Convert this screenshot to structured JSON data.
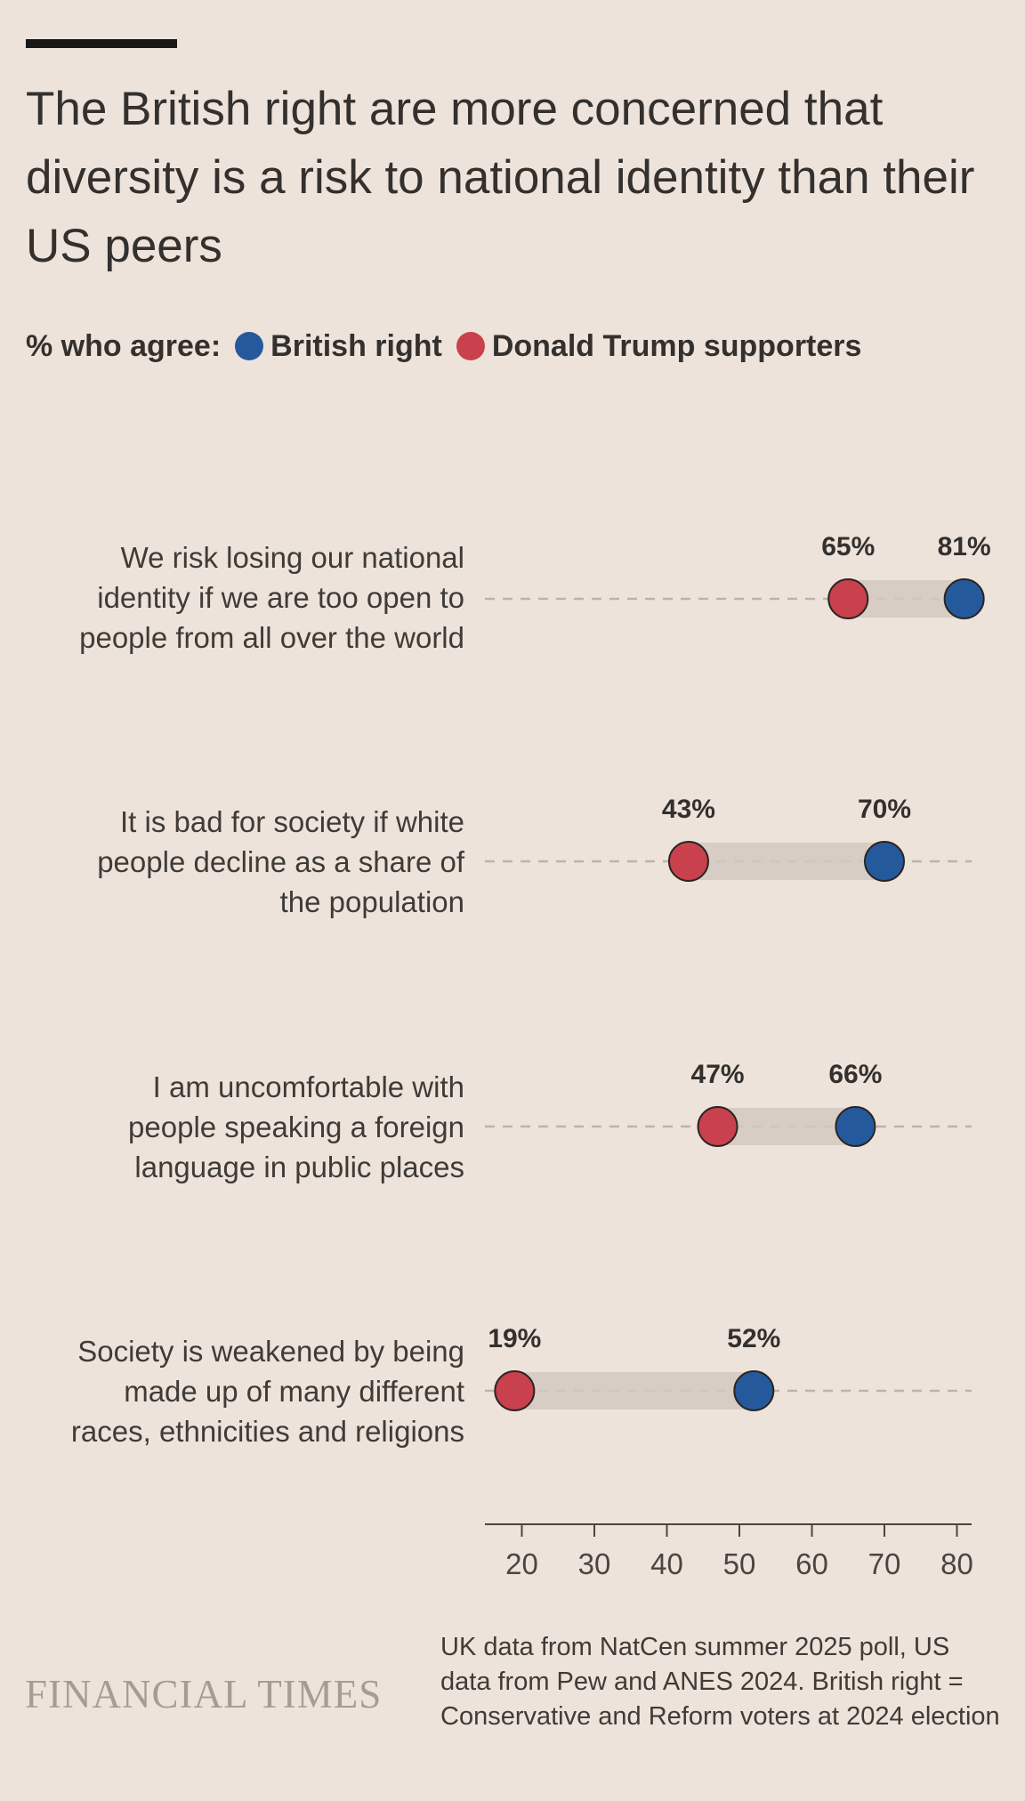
{
  "title": "The British right are more concerned that diversity is a risk to national identity than their US peers",
  "legend": {
    "prefix": "% who agree:",
    "items": [
      {
        "label": "British right",
        "color": "#245a9c"
      },
      {
        "label": "Donald Trump supporters",
        "color": "#c8414c"
      }
    ]
  },
  "chart_data": {
    "type": "dumbbell",
    "xlim": [
      15,
      82
    ],
    "xticks": [
      20,
      30,
      40,
      50,
      60,
      70,
      80
    ],
    "grid": false,
    "series": [
      {
        "name": "British right",
        "color": "#245a9c",
        "values": [
          81,
          70,
          66,
          52
        ]
      },
      {
        "name": "Donald Trump supporters",
        "color": "#c8414c",
        "values": [
          65,
          43,
          47,
          19
        ]
      }
    ],
    "categories": [
      "We risk losing our national identity if we are too open to people from all over the world",
      "It is bad for society if white people decline as a share of the population",
      "I am uncomfortable with people speaking a foreign language in public places",
      "Society is weakened by being made up of many different races, ethnicities and religions"
    ]
  },
  "rows": [
    {
      "lines": [
        "We risk losing our national",
        "identity if we are too open to",
        "people from all over the world"
      ],
      "british": 81,
      "trump": 65,
      "british_label": "81%",
      "trump_label": "65%"
    },
    {
      "lines": [
        "It is bad for society if white",
        "people decline as a share of",
        "the population"
      ],
      "british": 70,
      "trump": 43,
      "british_label": "70%",
      "trump_label": "43%"
    },
    {
      "lines": [
        "I am uncomfortable with",
        "people speaking a foreign",
        "language in public places"
      ],
      "british": 66,
      "trump": 47,
      "british_label": "66%",
      "trump_label": "47%"
    },
    {
      "lines": [
        "Society is weakened by being",
        "made up of many different",
        "races, ethnicities and religions"
      ],
      "british": 52,
      "trump": 19,
      "british_label": "52%",
      "trump_label": "19%"
    }
  ],
  "footer": {
    "logo": "FINANCIAL TIMES",
    "source": "UK data from NatCen summer 2025 poll, US data from Pew and ANES 2024. British right = Conservative and Reform voters at 2024 election"
  }
}
